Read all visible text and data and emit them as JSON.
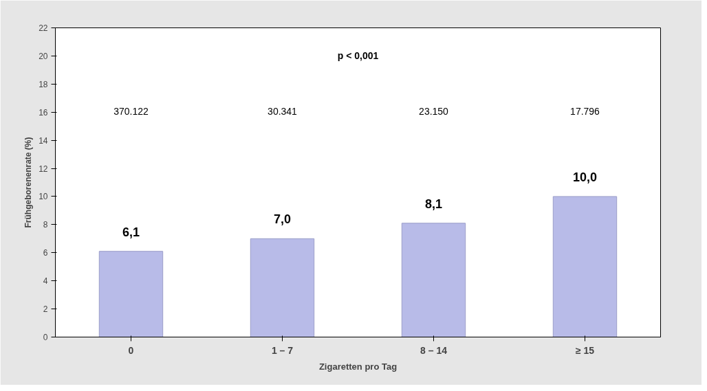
{
  "chart_data": {
    "type": "bar",
    "xlabel": "Zigaretten pro Tag",
    "ylabel": "Frühgeborenenrate (%)",
    "categories": [
      "0",
      "1 – 7",
      "8 – 14",
      "≥ 15"
    ],
    "values": [
      6.1,
      7.0,
      8.1,
      10.0
    ],
    "value_labels": [
      "6,1",
      "7,0",
      "8,1",
      "10,0"
    ],
    "color": "#b8bbe8",
    "ylim": [
      0,
      22
    ],
    "yticks": [
      0,
      2,
      4,
      6,
      8,
      10,
      12,
      14,
      16,
      18,
      20,
      22
    ],
    "grid": false,
    "annotations": [
      "p < 0,001",
      "370.122",
      "30.341",
      "23.150",
      "17.796"
    ]
  }
}
